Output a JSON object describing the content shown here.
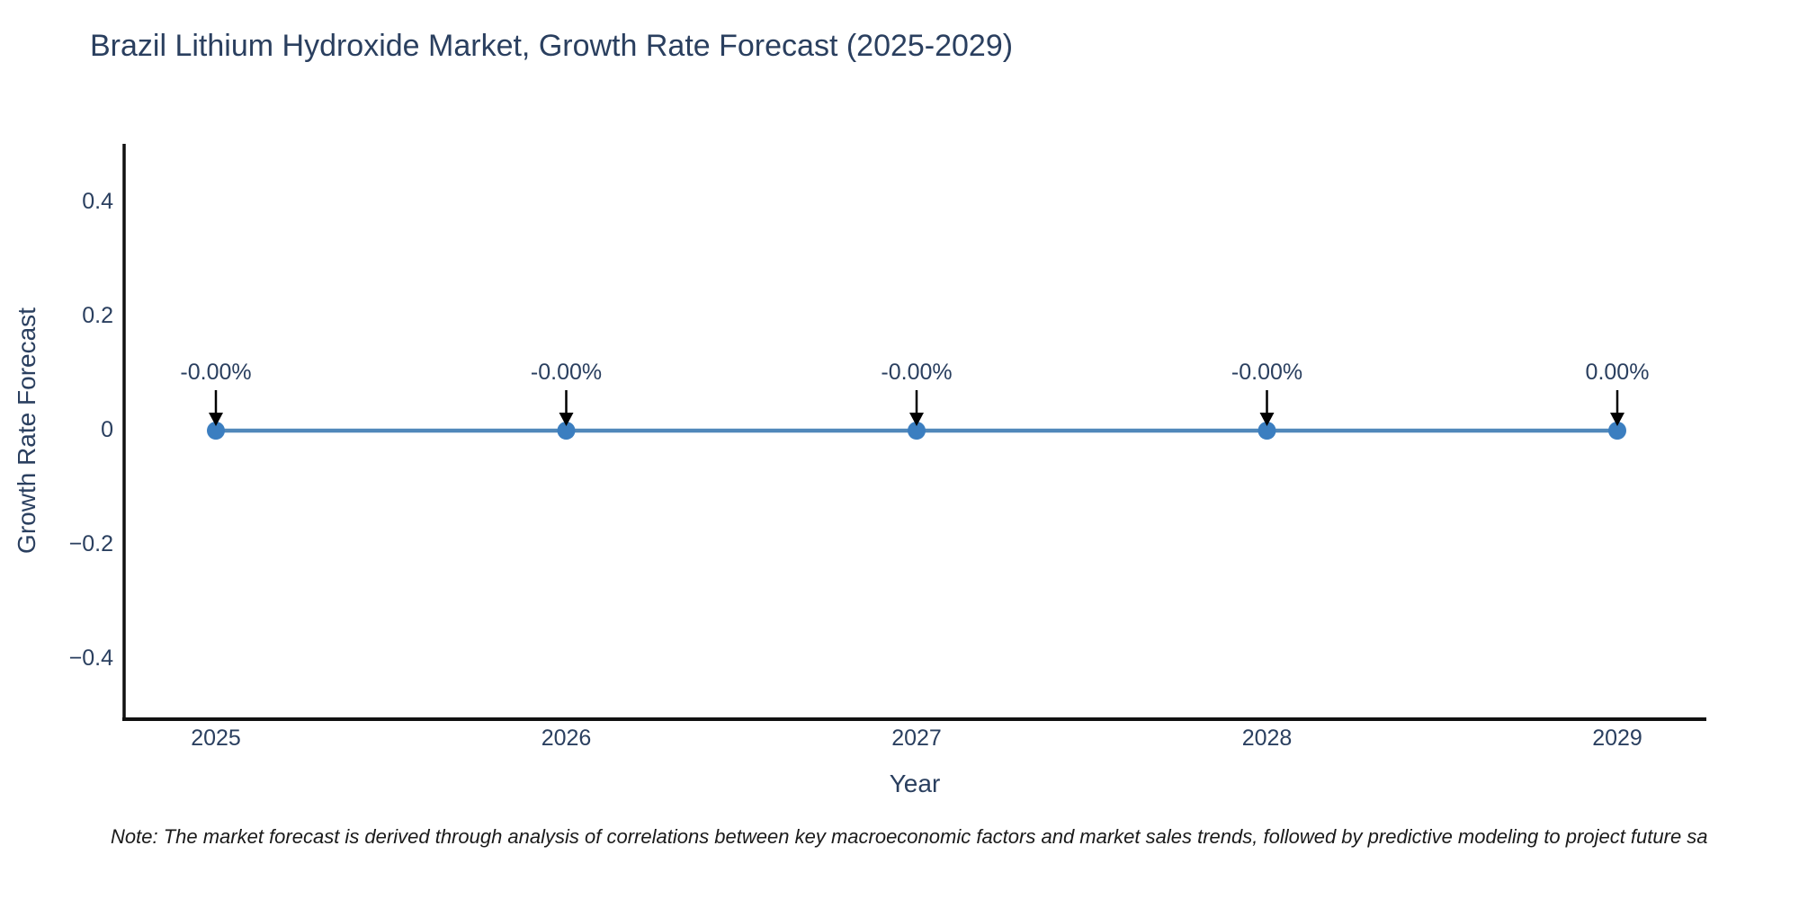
{
  "chart_data": {
    "type": "line",
    "title": "Brazil Lithium Hydroxide Market, Growth Rate Forecast (2025-2029)",
    "xlabel": "Year",
    "ylabel": "Growth Rate Forecast",
    "x": [
      2025,
      2026,
      2027,
      2028,
      2029
    ],
    "series": [
      {
        "name": "Growth Rate Forecast",
        "values": [
          0,
          0,
          0,
          0,
          0
        ]
      }
    ],
    "point_labels": [
      "-0.00%",
      "-0.00%",
      "-0.00%",
      "-0.00%",
      "0.00%"
    ],
    "y_ticks": [
      {
        "value": 0.4,
        "label": "0.4"
      },
      {
        "value": 0.2,
        "label": "0.2"
      },
      {
        "value": 0,
        "label": "0"
      },
      {
        "value": -0.2,
        "label": "−0.2"
      },
      {
        "value": -0.4,
        "label": "−0.4"
      }
    ],
    "ylim": [
      -0.5,
      0.5
    ],
    "grid": false,
    "legend": "none",
    "colors": {
      "line": "#5188ba",
      "marker": "#3b7ec0",
      "axis": "#111111",
      "arrow": "#000000",
      "text": "#2a3f5f",
      "background": "#ffffff"
    }
  },
  "note": {
    "text": "Note: The market forecast is derived through analysis of correlations between key macroeconomic factors and market sales trends, followed by predictive modeling to project future sa"
  }
}
